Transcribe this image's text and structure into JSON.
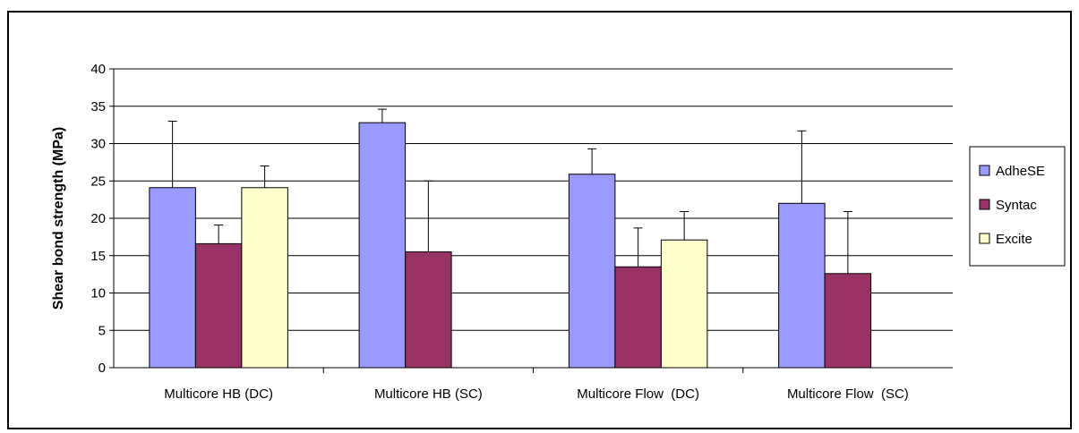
{
  "chart_data": {
    "type": "bar",
    "title": "",
    "xlabel": "",
    "ylabel": "Shear bond strength (MPa)",
    "ylim": [
      0,
      40
    ],
    "yticks": [
      0,
      5,
      10,
      15,
      20,
      25,
      30,
      35,
      40
    ],
    "grid": true,
    "legend_position": "right",
    "categories": [
      "Multicore HB (DC)",
      "Multicore HB (SC)",
      "Multicore Flow  (DC)",
      "Multicore Flow  (SC)"
    ],
    "series": [
      {
        "name": "AdheSE",
        "color": "#9999ff",
        "values": [
          24.1,
          32.8,
          25.9,
          22.0
        ],
        "error_upper": [
          33.0,
          34.6,
          29.3,
          31.7
        ]
      },
      {
        "name": "Syntac",
        "color": "#993366",
        "values": [
          16.6,
          15.5,
          13.5,
          12.6
        ],
        "error_upper": [
          19.1,
          25.0,
          18.7,
          20.9
        ]
      },
      {
        "name": "Excite",
        "color": "#ffffcc",
        "values": [
          24.1,
          null,
          17.1,
          null
        ],
        "error_upper": [
          27.0,
          null,
          20.9,
          null
        ]
      }
    ]
  }
}
